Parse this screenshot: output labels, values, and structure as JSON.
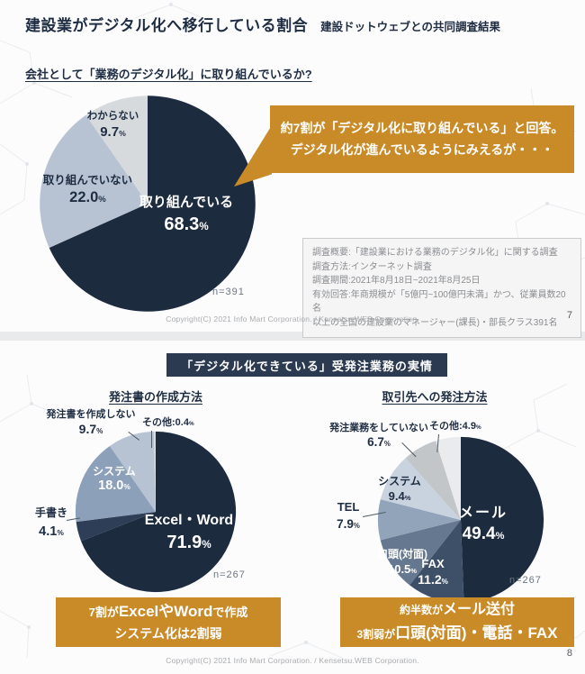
{
  "slide1": {
    "title": "建設業がデジタル化へ移行している割合",
    "subtitle": "建設ドットウェブとの共同調査結果",
    "question": "会社として「業務のデジタル化」に取り組んでいるか?",
    "callout_text": "約7割が「デジタル化に取り組んでいる」と回答。\nデジタル化が進んでいるようにみえるが・・・",
    "survey_note": "調査概要:「建設業における業務のデジタル化」に関する調査\n調査方法:インターネット調査\n調査期間:2021年8月18日~2021年8月25日\n有効回答:年商規模が「5億円~100億円未満」かつ、従業員数20名\n以上の全国の建設業のマネージャー(課長)・部長クラス391名",
    "copyright": "Copyright(C) 2021 Info Mart Corporation. / Kensetsu.WEB Corporation.",
    "page_number": "7"
  },
  "slide2": {
    "banner": "「デジタル化できている」受発注業務の実情",
    "left_callout": {
      "prefix": "7割が",
      "highlight": "ExcelやWord",
      "suffix": "で作成",
      "line2": "システム化は2割弱"
    },
    "right_callout": {
      "prefix": "約半数が",
      "highlight": "メール送付",
      "line2_prefix": "3割弱が",
      "line2_highlight": "口頭(対面)・電話・FAX"
    },
    "copyright": "Copyright(C) 2021 Info Mart Corporation. / Kensetsu.WEB Corporation.",
    "page_number": "8"
  },
  "chart_data": [
    {
      "type": "pie",
      "title": "会社として「業務のデジタル化」に取り組んでいるか?",
      "n_label": "n=391",
      "unit": "%",
      "legend_position": "none",
      "slices": [
        {
          "label": "取り組んでいる",
          "value": "68.3",
          "pct": 68.3,
          "color": "#1d2b3f"
        },
        {
          "label": "取り組んでいない",
          "value": "22.0",
          "pct": 22.0,
          "color": "#b7c3d3"
        },
        {
          "label": "わからない",
          "value": "9.7",
          "pct": 9.7,
          "color": "#d7dadd"
        }
      ]
    },
    {
      "type": "pie",
      "title": "発注書の作成方法",
      "n_label": "n=267",
      "unit": "%",
      "legend_position": "none",
      "slices": [
        {
          "label": "Excel・Word",
          "value": "71.9",
          "pct": 71.9,
          "color": "#1d2b3f"
        },
        {
          "label": "手書き",
          "value": "4.1",
          "pct": 4.1,
          "color": "#2d3e56"
        },
        {
          "label": "システム",
          "value": "18.0",
          "pct": 18.0,
          "color": "#8da0b9"
        },
        {
          "label": "発注書を作成しない",
          "value": "9.7",
          "pct": 9.7,
          "color": "#b7c3d3"
        },
        {
          "label": "その他:",
          "value": "0.4",
          "pct": 0.4,
          "color": "#d7dadd"
        }
      ]
    },
    {
      "type": "pie",
      "title": "取引先への発注方法",
      "n_label": "n=267",
      "unit": "%",
      "legend_position": "none",
      "slices": [
        {
          "label": "メール",
          "value": "49.4",
          "pct": 49.4,
          "color": "#1d2b3f"
        },
        {
          "label": "FAX",
          "value": "11.2",
          "pct": 11.2,
          "color": "#3d5068"
        },
        {
          "label": "口頭(対面)",
          "value": "10.5",
          "pct": 10.5,
          "color": "#65788f"
        },
        {
          "label": "TEL",
          "value": "7.9",
          "pct": 7.9,
          "color": "#92a4ba"
        },
        {
          "label": "システム",
          "value": "9.4",
          "pct": 9.4,
          "color": "#c9d3df"
        },
        {
          "label": "発注業務をしていない",
          "value": "6.7",
          "pct": 6.7,
          "color": "#c3c6c9"
        },
        {
          "label": "その他:",
          "value": "4.9",
          "pct": 4.9,
          "color": "#e9ebec"
        }
      ]
    }
  ]
}
